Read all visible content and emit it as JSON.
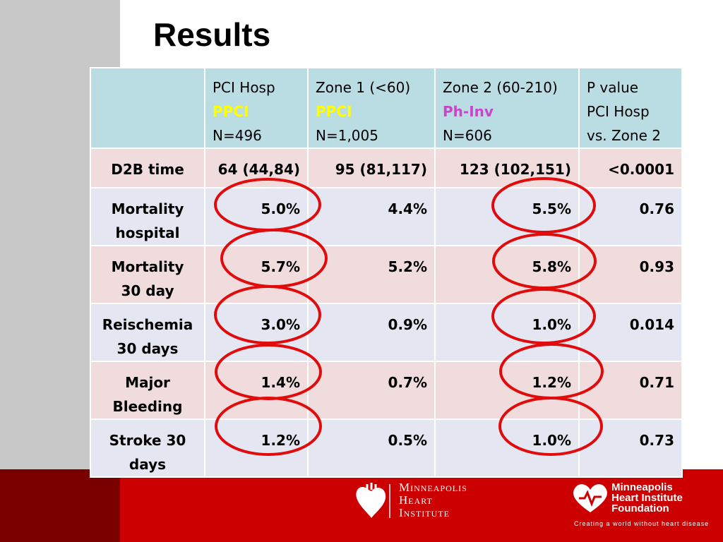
{
  "title": "Results",
  "table": {
    "headers": [
      {
        "lines": [
          "",
          "",
          ""
        ]
      },
      {
        "line1": "PCI Hosp",
        "highlight": "PPCI",
        "line3": "N=496"
      },
      {
        "line1": "Zone 1 (<60)",
        "highlight": "PPCI",
        "line3": "N=1,005"
      },
      {
        "line1": "Zone 2 (60-210)",
        "highlight": "Ph-Inv",
        "line3": "N=606"
      },
      {
        "line1": "P value",
        "line2": "PCI Hosp",
        "line3": "vs. Zone 2"
      }
    ],
    "rows": [
      {
        "label": "D2B time",
        "label2": "",
        "c1": "64 (44,84)",
        "c2": "95 (81,117)",
        "c3": "123 (102,151)",
        "p": "<0.0001"
      },
      {
        "label": "Mortality",
        "label2": "hospital",
        "c1": "5.0%",
        "c2": "4.4%",
        "c3": "5.5%",
        "p": "0.76"
      },
      {
        "label": "Mortality",
        "label2": "30 day",
        "c1": "5.7%",
        "c2": "5.2%",
        "c3": "5.8%",
        "p": "0.93"
      },
      {
        "label": "Reischemia",
        "label2": "30 days",
        "c1": "3.0%",
        "c2": "0.9%",
        "c3": "1.0%",
        "p": "0.014"
      },
      {
        "label": "Major",
        "label2": "Bleeding",
        "c1": "1.4%",
        "c2": "0.7%",
        "c3": "1.2%",
        "p": "0.71"
      },
      {
        "label": "Stroke 30",
        "label2": "days",
        "c1": "1.2%",
        "c2": "0.5%",
        "c3": "1.0%",
        "p": "0.73"
      }
    ]
  },
  "footer": {
    "mhi_line1": "Minneapolis",
    "mhi_line2": "Heart",
    "mhi_line3": "Institute",
    "mhif_line1": "Minneapolis",
    "mhif_line2": "Heart Institute",
    "mhif_line3": "Foundation",
    "tagline": "Creating a world without heart disease"
  },
  "colors": {
    "header_bg": "#b9dde3",
    "row_pink": "#f0dcdd",
    "row_lavender": "#e4e7f2",
    "ppci": "#ffff00",
    "ph_inv": "#cc44cc",
    "brand_red": "#cc0000",
    "circle_red": "#e00000"
  }
}
